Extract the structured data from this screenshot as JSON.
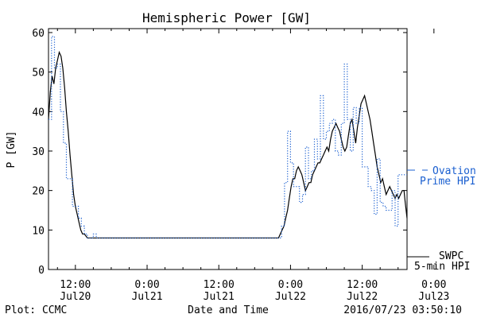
{
  "chart_data": {
    "type": "line",
    "title": "Hemispheric Power [GW]",
    "xlabel": "Date and Time",
    "ylabel": "P [GW]",
    "ylim": [
      0,
      61
    ],
    "xlim": [
      -16.5,
      43.5
    ],
    "x_unit": "hours from 2016/07/21 00:00",
    "y_ticks": [
      0,
      10,
      20,
      30,
      40,
      50,
      60
    ],
    "x_ticks": [
      {
        "x": -12,
        "time": "12:00",
        "date": "Jul20"
      },
      {
        "x": 0,
        "time": "0:00",
        "date": "Jul21"
      },
      {
        "x": 12,
        "time": "12:00",
        "date": "Jul21"
      },
      {
        "x": 24,
        "time": "0:00",
        "date": "Jul22"
      },
      {
        "x": 36,
        "time": "12:00",
        "date": "Jul22"
      },
      {
        "x": 48,
        "time": "0:00",
        "date": "Jul23"
      }
    ],
    "grid": false,
    "series": [
      {
        "name": "SWPC 5-min HPI",
        "legend_lines": [
          "SWPC",
          "5-min HPI"
        ],
        "color": "#000000",
        "style": "solid",
        "points": [
          [
            -16.5,
            38
          ],
          [
            -16.2,
            45
          ],
          [
            -15.9,
            49
          ],
          [
            -15.6,
            47
          ],
          [
            -15.3,
            51
          ],
          [
            -15.0,
            53
          ],
          [
            -14.7,
            55
          ],
          [
            -14.4,
            54
          ],
          [
            -14.1,
            51
          ],
          [
            -13.8,
            46
          ],
          [
            -13.5,
            40
          ],
          [
            -13.2,
            35
          ],
          [
            -12.9,
            29
          ],
          [
            -12.6,
            24
          ],
          [
            -12.3,
            19
          ],
          [
            -12.0,
            16
          ],
          [
            -11.7,
            14
          ],
          [
            -11.4,
            12
          ],
          [
            -11.1,
            10
          ],
          [
            -10.8,
            9
          ],
          [
            -10.5,
            9
          ],
          [
            -10.0,
            8
          ],
          [
            -9.5,
            8
          ],
          [
            5.0,
            8
          ],
          [
            22.0,
            8
          ],
          [
            22.3,
            9
          ],
          [
            22.6,
            10
          ],
          [
            22.9,
            11
          ],
          [
            23.2,
            13
          ],
          [
            23.5,
            15
          ],
          [
            23.8,
            18
          ],
          [
            24.1,
            21
          ],
          [
            24.4,
            23
          ],
          [
            24.7,
            23
          ],
          [
            25.0,
            25
          ],
          [
            25.3,
            26
          ],
          [
            25.6,
            25
          ],
          [
            25.9,
            24
          ],
          [
            26.2,
            22
          ],
          [
            26.5,
            20
          ],
          [
            26.8,
            21
          ],
          [
            27.1,
            22
          ],
          [
            27.4,
            22
          ],
          [
            27.7,
            24
          ],
          [
            28.0,
            25
          ],
          [
            28.3,
            26
          ],
          [
            28.6,
            27
          ],
          [
            28.9,
            27
          ],
          [
            29.2,
            28
          ],
          [
            29.5,
            29
          ],
          [
            29.8,
            30
          ],
          [
            30.1,
            31
          ],
          [
            30.4,
            30
          ],
          [
            30.7,
            33
          ],
          [
            31.0,
            35
          ],
          [
            31.3,
            36
          ],
          [
            31.6,
            37
          ],
          [
            31.9,
            36
          ],
          [
            32.2,
            35
          ],
          [
            32.5,
            33
          ],
          [
            32.8,
            31
          ],
          [
            33.1,
            30
          ],
          [
            33.4,
            31
          ],
          [
            33.7,
            34
          ],
          [
            34.0,
            37
          ],
          [
            34.3,
            38
          ],
          [
            34.6,
            35
          ],
          [
            34.9,
            32
          ],
          [
            35.2,
            36
          ],
          [
            35.5,
            39
          ],
          [
            35.8,
            42
          ],
          [
            36.1,
            43
          ],
          [
            36.4,
            44
          ],
          [
            36.7,
            42
          ],
          [
            37.0,
            40
          ],
          [
            37.3,
            38
          ],
          [
            37.6,
            35
          ],
          [
            37.9,
            32
          ],
          [
            38.2,
            29
          ],
          [
            38.5,
            26
          ],
          [
            38.8,
            24
          ],
          [
            39.1,
            22
          ],
          [
            39.4,
            23
          ],
          [
            39.7,
            21
          ],
          [
            40.0,
            19
          ],
          [
            40.3,
            20
          ],
          [
            40.6,
            21
          ],
          [
            40.9,
            20
          ],
          [
            41.2,
            19
          ],
          [
            41.5,
            18
          ],
          [
            41.8,
            19
          ],
          [
            42.1,
            18
          ],
          [
            42.4,
            19
          ],
          [
            42.7,
            20
          ],
          [
            43.0,
            20
          ],
          [
            43.2,
            17
          ],
          [
            43.5,
            13
          ]
        ]
      },
      {
        "name": "Ovation Prime HPI",
        "legend_lines": [
          "Ovation",
          "Prime HPI"
        ],
        "color": "#1a5fd0",
        "style": "dotted-step",
        "points": [
          [
            -16.5,
            38
          ],
          [
            -16.0,
            59
          ],
          [
            -15.5,
            51
          ],
          [
            -15.0,
            52
          ],
          [
            -14.5,
            40
          ],
          [
            -14.0,
            32
          ],
          [
            -13.5,
            23
          ],
          [
            -12.5,
            16
          ],
          [
            -11.5,
            13
          ],
          [
            -11.0,
            11
          ],
          [
            -10.5,
            9
          ],
          [
            -10.0,
            8
          ],
          [
            -9.0,
            9
          ],
          [
            -8.5,
            8
          ],
          [
            21.5,
            8
          ],
          [
            22.5,
            11
          ],
          [
            23.0,
            22
          ],
          [
            23.5,
            35
          ],
          [
            24.0,
            27
          ],
          [
            24.5,
            21
          ],
          [
            25.5,
            17
          ],
          [
            26.0,
            19
          ],
          [
            26.5,
            31
          ],
          [
            27.0,
            23
          ],
          [
            27.5,
            25
          ],
          [
            28.0,
            33
          ],
          [
            28.5,
            28
          ],
          [
            29.0,
            44
          ],
          [
            29.5,
            33
          ],
          [
            30.0,
            35
          ],
          [
            30.5,
            37
          ],
          [
            31.0,
            38
          ],
          [
            31.5,
            30
          ],
          [
            32.0,
            29
          ],
          [
            32.5,
            37
          ],
          [
            33.0,
            52
          ],
          [
            33.5,
            38
          ],
          [
            34.0,
            30
          ],
          [
            34.5,
            41
          ],
          [
            35.0,
            37
          ],
          [
            35.5,
            41
          ],
          [
            36.0,
            26
          ],
          [
            37.0,
            21
          ],
          [
            37.5,
            20
          ],
          [
            38.0,
            14
          ],
          [
            38.5,
            28
          ],
          [
            39.0,
            17
          ],
          [
            39.5,
            16
          ],
          [
            40.0,
            15
          ],
          [
            40.5,
            15
          ],
          [
            41.0,
            20
          ],
          [
            41.5,
            11
          ],
          [
            42.0,
            24
          ],
          [
            43.5,
            24
          ]
        ]
      }
    ],
    "footer": {
      "left": "Plot: CCMC",
      "right": "2016/07/23 03:50:10"
    }
  }
}
